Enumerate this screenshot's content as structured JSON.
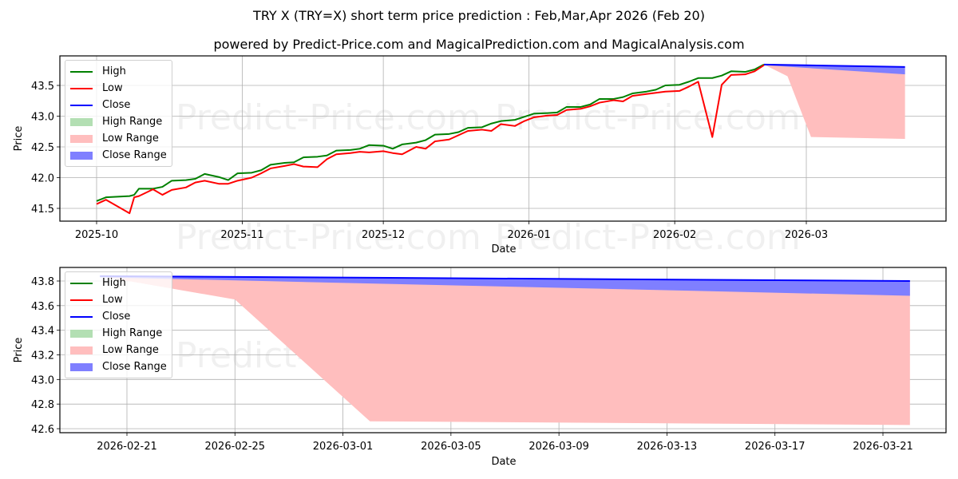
{
  "header": {
    "title": "TRY X (TRY=X) short term price prediction : Feb,Mar,Apr 2026 (Feb 20)",
    "subtitle": "powered by Predict-Price.com and MagicalPrediction.com and MagicalAnalysis.com"
  },
  "watermark": "Predict-Price.com",
  "colors": {
    "high": "#008000",
    "low": "#ff0000",
    "close": "#0000ff",
    "high_range": "#b3dfb3",
    "low_range": "#ffbebe",
    "close_range": "#7f7fff",
    "grid": "#b0b0b0"
  },
  "legend": [
    {
      "label": "High",
      "kind": "line",
      "color_key": "high"
    },
    {
      "label": "Low",
      "kind": "line",
      "color_key": "low"
    },
    {
      "label": "Close",
      "kind": "line",
      "color_key": "close"
    },
    {
      "label": "High Range",
      "kind": "fill",
      "color_key": "high_range"
    },
    {
      "label": "Low Range",
      "kind": "fill",
      "color_key": "low_range"
    },
    {
      "label": "Close Range",
      "kind": "fill",
      "color_key": "close_range"
    }
  ],
  "chart_data": [
    {
      "type": "line",
      "title": "TRY X (TRY=X) short term price prediction : Feb,Mar,Apr 2026 (Feb 20)",
      "xlabel": "Date",
      "ylabel": "Price",
      "ylim": [
        41.3,
        43.9
      ],
      "grid": true,
      "legend_position": "upper left",
      "x_ticks": [
        "2025-10",
        "2025-11",
        "2025-12",
        "2026-01",
        "2026-02",
        "2026-03"
      ],
      "y_ticks": [
        41.5,
        42.0,
        42.5,
        43.0,
        43.5
      ],
      "series": [
        {
          "name": "High",
          "x": [
            "2025-10-01",
            "2025-10-03",
            "2025-10-08",
            "2025-10-09",
            "2025-10-10",
            "2025-10-13",
            "2025-10-15",
            "2025-10-17",
            "2025-10-20",
            "2025-10-22",
            "2025-10-24",
            "2025-10-27",
            "2025-10-29",
            "2025-10-31",
            "2025-11-03",
            "2025-11-05",
            "2025-11-07",
            "2025-11-10",
            "2025-11-12",
            "2025-11-14",
            "2025-11-17",
            "2025-11-19",
            "2025-11-21",
            "2025-11-24",
            "2025-11-26",
            "2025-11-28",
            "2025-12-01",
            "2025-12-03",
            "2025-12-05",
            "2025-12-08",
            "2025-12-10",
            "2025-12-12",
            "2025-12-15",
            "2025-12-17",
            "2025-12-19",
            "2025-12-22",
            "2025-12-24",
            "2025-12-26",
            "2025-12-29",
            "2025-12-31",
            "2026-01-02",
            "2026-01-05",
            "2026-01-07",
            "2026-01-09",
            "2026-01-12",
            "2026-01-14",
            "2026-01-16",
            "2026-01-19",
            "2026-01-21",
            "2026-01-23",
            "2026-01-26",
            "2026-01-28",
            "2026-01-30",
            "2026-02-02",
            "2026-02-04",
            "2026-02-06",
            "2026-02-09",
            "2026-02-11",
            "2026-02-13",
            "2026-02-16",
            "2026-02-18",
            "2026-02-20"
          ],
          "values": [
            41.62,
            41.68,
            41.7,
            41.72,
            41.82,
            41.82,
            41.85,
            41.95,
            41.96,
            41.98,
            42.06,
            42.01,
            41.96,
            42.07,
            42.08,
            42.12,
            42.21,
            42.24,
            42.25,
            42.33,
            42.34,
            42.36,
            42.44,
            42.45,
            42.47,
            42.53,
            42.52,
            42.47,
            42.54,
            42.57,
            42.61,
            42.7,
            42.71,
            42.74,
            42.81,
            42.82,
            42.88,
            42.92,
            42.94,
            42.99,
            43.04,
            43.05,
            43.06,
            43.15,
            43.15,
            43.19,
            43.28,
            43.28,
            43.31,
            43.37,
            43.4,
            43.43,
            43.5,
            43.51,
            43.56,
            43.62,
            43.62,
            43.66,
            43.73,
            43.72,
            43.76,
            43.84
          ]
        },
        {
          "name": "Low",
          "x": [
            "2025-10-01",
            "2025-10-03",
            "2025-10-08",
            "2025-10-09",
            "2025-10-10",
            "2025-10-13",
            "2025-10-15",
            "2025-10-17",
            "2025-10-20",
            "2025-10-22",
            "2025-10-24",
            "2025-10-27",
            "2025-10-29",
            "2025-10-31",
            "2025-11-03",
            "2025-11-05",
            "2025-11-07",
            "2025-11-10",
            "2025-11-12",
            "2025-11-14",
            "2025-11-17",
            "2025-11-19",
            "2025-11-21",
            "2025-11-24",
            "2025-11-26",
            "2025-11-28",
            "2025-12-01",
            "2025-12-03",
            "2025-12-05",
            "2025-12-08",
            "2025-12-10",
            "2025-12-12",
            "2025-12-15",
            "2025-12-17",
            "2025-12-19",
            "2025-12-22",
            "2025-12-24",
            "2025-12-26",
            "2025-12-29",
            "2025-12-31",
            "2026-01-02",
            "2026-01-05",
            "2026-01-07",
            "2026-01-09",
            "2026-01-12",
            "2026-01-14",
            "2026-01-16",
            "2026-01-19",
            "2026-01-21",
            "2026-01-23",
            "2026-01-26",
            "2026-01-28",
            "2026-01-30",
            "2026-02-02",
            "2026-02-04",
            "2026-02-06",
            "2026-02-09",
            "2026-02-11",
            "2026-02-13",
            "2026-02-16",
            "2026-02-18",
            "2026-02-20"
          ],
          "values": [
            41.57,
            41.64,
            41.42,
            41.68,
            41.7,
            41.81,
            41.72,
            41.8,
            41.84,
            41.92,
            41.95,
            41.9,
            41.9,
            41.95,
            42.0,
            42.07,
            42.15,
            42.19,
            42.22,
            42.18,
            42.17,
            42.3,
            42.38,
            42.4,
            42.42,
            42.41,
            42.43,
            42.4,
            42.38,
            42.5,
            42.47,
            42.59,
            42.62,
            42.69,
            42.76,
            42.78,
            42.76,
            42.87,
            42.84,
            42.92,
            42.98,
            43.01,
            43.02,
            43.1,
            43.12,
            43.16,
            43.22,
            43.26,
            43.24,
            43.33,
            43.36,
            43.38,
            43.4,
            43.41,
            43.48,
            43.56,
            42.66,
            43.51,
            43.67,
            43.68,
            43.73,
            43.83
          ]
        },
        {
          "name": "Close",
          "x": [
            "2026-02-20",
            "2026-03-22"
          ],
          "values": [
            43.84,
            43.8
          ]
        },
        {
          "name": "Low Range",
          "x": [
            "2026-02-20",
            "2026-02-25",
            "2026-03-02",
            "2026-03-22"
          ],
          "upper": [
            43.84,
            43.83,
            43.82,
            43.8
          ],
          "lower": [
            43.84,
            43.65,
            42.66,
            42.63
          ]
        },
        {
          "name": "Close Range",
          "x": [
            "2026-02-20",
            "2026-03-22"
          ],
          "upper": [
            43.84,
            43.8
          ],
          "lower": [
            43.83,
            43.68
          ]
        }
      ]
    },
    {
      "type": "line",
      "title": "",
      "xlabel": "Date",
      "ylabel": "Price",
      "ylim": [
        42.57,
        43.89
      ],
      "grid": true,
      "legend_position": "upper left",
      "x_ticks": [
        "2026-02-21",
        "2026-02-25",
        "2026-03-01",
        "2026-03-05",
        "2026-03-09",
        "2026-03-13",
        "2026-03-17",
        "2026-03-21"
      ],
      "y_ticks": [
        42.6,
        42.8,
        43.0,
        43.2,
        43.4,
        43.6,
        43.8
      ],
      "series": [
        {
          "name": "Close",
          "x": [
            "2026-02-20",
            "2026-03-22"
          ],
          "values": [
            43.84,
            43.8
          ]
        },
        {
          "name": "Low Range",
          "x": [
            "2026-02-20",
            "2026-02-25",
            "2026-03-02",
            "2026-03-22"
          ],
          "upper": [
            43.84,
            43.83,
            43.82,
            43.8
          ],
          "lower": [
            43.84,
            43.65,
            42.66,
            42.63
          ]
        },
        {
          "name": "Close Range",
          "x": [
            "2026-02-20",
            "2026-03-22"
          ],
          "upper": [
            43.84,
            43.8
          ],
          "lower": [
            43.83,
            43.68
          ]
        }
      ]
    }
  ]
}
